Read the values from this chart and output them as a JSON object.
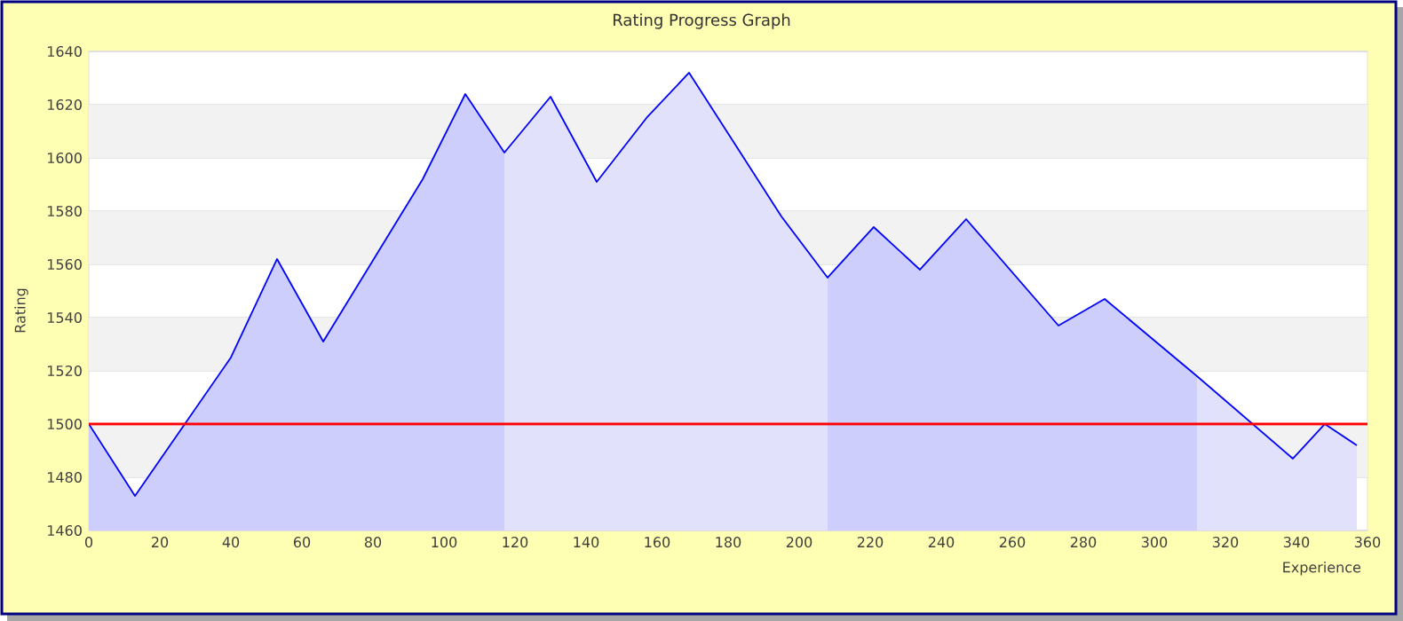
{
  "chart_data": {
    "type": "area",
    "title": "Rating Progress Graph",
    "xlabel": "Experience",
    "ylabel": "Rating",
    "xlim": [
      0,
      360
    ],
    "xticks": [
      0,
      20,
      40,
      60,
      80,
      100,
      120,
      140,
      160,
      180,
      200,
      220,
      240,
      260,
      280,
      300,
      320,
      340,
      360
    ],
    "ylim": [
      1460,
      1640
    ],
    "yticks": [
      1460,
      1480,
      1500,
      1520,
      1540,
      1560,
      1580,
      1600,
      1620,
      1640
    ],
    "grid": "y",
    "bands": [
      {
        "axis": "y",
        "from": 1480,
        "to": 1500,
        "color": "#f2f2f2"
      },
      {
        "axis": "y",
        "from": 1520,
        "to": 1540,
        "color": "#f2f2f2"
      },
      {
        "axis": "y",
        "from": 1560,
        "to": 1580,
        "color": "#f2f2f2"
      },
      {
        "axis": "y",
        "from": 1600,
        "to": 1620,
        "color": "#f2f2f2"
      }
    ],
    "ref_lines": [
      {
        "axis": "y",
        "value": 1500,
        "color": "#ff0000"
      }
    ],
    "series": [
      {
        "color": "#cdcefc",
        "x": [
          0,
          13,
          40,
          53,
          66,
          94,
          106,
          117
        ],
        "values": [
          1500,
          1473,
          1525,
          1562,
          1531,
          1592,
          1624,
          1602
        ]
      },
      {
        "color": "#e1e1fb",
        "x": [
          117,
          130,
          143,
          157,
          169,
          195,
          208
        ],
        "values": [
          1602,
          1623,
          1591,
          1615,
          1632,
          1578,
          1555
        ]
      },
      {
        "color": "#cdcefc",
        "x": [
          208,
          221,
          234,
          247,
          273,
          286,
          312
        ],
        "values": [
          1555,
          1574,
          1558,
          1577,
          1537,
          1547,
          1518
        ]
      },
      {
        "color": "#e1e1fb",
        "x": [
          312,
          339,
          348,
          357
        ],
        "values": [
          1518,
          1487,
          1500,
          1492
        ]
      },
      {
        "type": "line",
        "color": "#0000ff",
        "x": [
          0,
          13,
          40,
          53,
          66,
          94,
          106,
          117,
          130,
          143,
          157,
          169,
          195,
          208,
          221,
          234,
          247,
          273,
          286,
          312,
          339,
          348,
          357
        ],
        "values": [
          1500,
          1473,
          1525,
          1562,
          1531,
          1592,
          1624,
          1602,
          1623,
          1591,
          1615,
          1632,
          1578,
          1555,
          1574,
          1558,
          1577,
          1537,
          1547,
          1518,
          1487,
          1500,
          1492
        ]
      }
    ]
  }
}
